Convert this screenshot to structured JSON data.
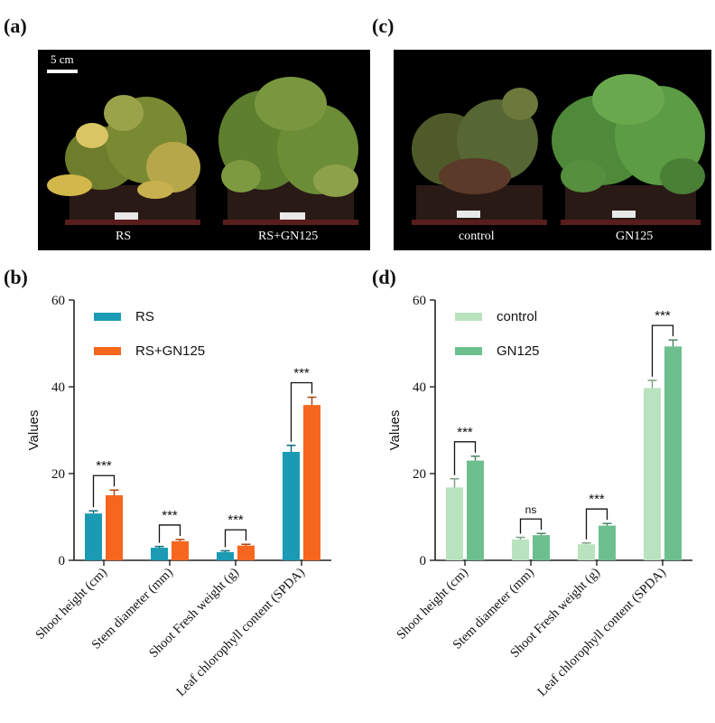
{
  "panels": {
    "a": "(a)",
    "b": "(b)",
    "c": "(c)",
    "d": "(d)"
  },
  "photo_a": {
    "scale_label": "5 cm",
    "left_caption": "RS",
    "right_caption": "RS+GN125"
  },
  "photo_c": {
    "left_caption": "control",
    "right_caption": "GN125"
  },
  "chart_data": [
    {
      "type": "bar",
      "panel": "(b)",
      "ylabel": "Values",
      "ylim": [
        0,
        60
      ],
      "yticks": [
        0,
        20,
        40,
        60
      ],
      "categories": [
        "Shoot height (cm)",
        "Stem diameter (mm)",
        "Shoot Fresh weight (g)",
        "Leaf chlorophyll content (SPDA)"
      ],
      "series": [
        {
          "name": "RS",
          "color": "#1a9bb3",
          "values": [
            10.8,
            2.9,
            1.9,
            25.0
          ],
          "errors": [
            0.6,
            0.3,
            0.3,
            1.5
          ]
        },
        {
          "name": "RS+GN125",
          "color": "#f6661e",
          "values": [
            15.0,
            4.4,
            3.4,
            35.8
          ],
          "errors": [
            1.2,
            0.4,
            0.3,
            1.8
          ]
        }
      ],
      "significance": [
        "***",
        "***",
        "***",
        "***"
      ],
      "legend": "top-left"
    },
    {
      "type": "bar",
      "panel": "(d)",
      "ylabel": "Values",
      "ylim": [
        0,
        60
      ],
      "yticks": [
        0,
        20,
        40,
        60
      ],
      "categories": [
        "Shoot height (cm)",
        "Stem diameter (mm)",
        "Shoot Fresh weight (g)",
        "Leaf chlorophyll content (SPDA)"
      ],
      "series": [
        {
          "name": "control",
          "color": "#b9e3be",
          "values": [
            16.8,
            4.8,
            3.7,
            39.7
          ],
          "errors": [
            2.0,
            0.5,
            0.3,
            1.8
          ]
        },
        {
          "name": "GN125",
          "color": "#6dc08e",
          "values": [
            23.0,
            5.8,
            8.0,
            49.3
          ],
          "errors": [
            1.0,
            0.4,
            0.5,
            1.5
          ]
        }
      ],
      "significance": [
        "***",
        "ns",
        "***",
        "***"
      ],
      "legend": "top-left"
    }
  ]
}
